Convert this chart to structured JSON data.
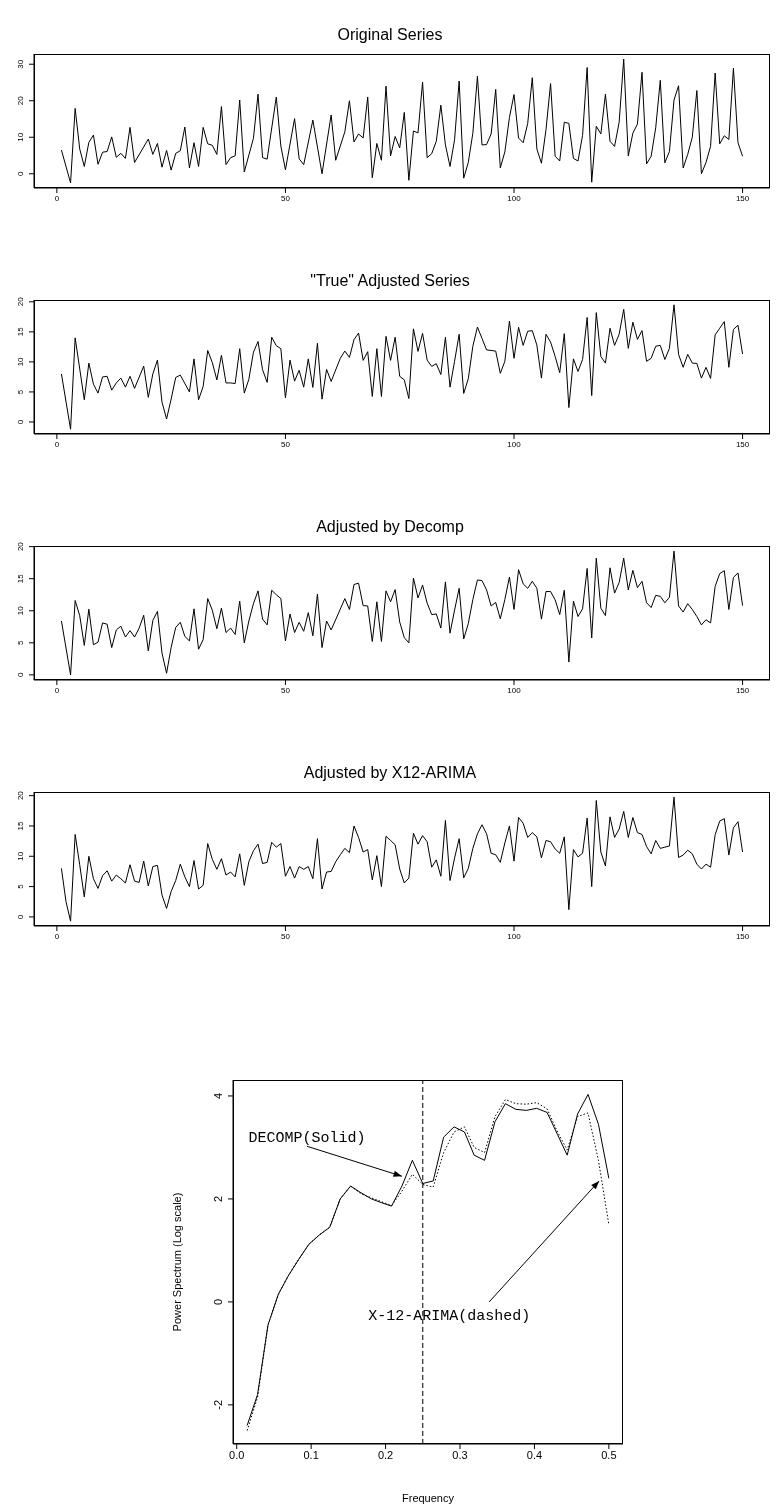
{
  "chart_data": [
    {
      "type": "line",
      "title": "Original Series",
      "color": "#000000",
      "marker": "none",
      "xlim": [
        -5,
        156
      ],
      "xticks": [
        0,
        50,
        100,
        150
      ],
      "ylim": [
        -3.9,
        32.8
      ],
      "yticks": [
        0,
        10,
        20,
        30
      ],
      "x": [
        1,
        3,
        4,
        5,
        6,
        7,
        8,
        9,
        10,
        11,
        12,
        13,
        14,
        15,
        16,
        17,
        20,
        21,
        22,
        23,
        24,
        25,
        26,
        27,
        28,
        29,
        30,
        31,
        32,
        33,
        34,
        35,
        36,
        37,
        38,
        39,
        40,
        41,
        43,
        44,
        45,
        46,
        48,
        49,
        50,
        52,
        53,
        54,
        56,
        58,
        60,
        61,
        63,
        64,
        65,
        66,
        67,
        68,
        69,
        70,
        71,
        72,
        73,
        74,
        75,
        76,
        77,
        78,
        79,
        80,
        81,
        82,
        83,
        84,
        85,
        86,
        87,
        88,
        89,
        90,
        91,
        92,
        93,
        94,
        95,
        96,
        97,
        98,
        99,
        100,
        101,
        102,
        103,
        104,
        105,
        106,
        107,
        108,
        109,
        110,
        111,
        112,
        113,
        114,
        115,
        116,
        117,
        118,
        119,
        120,
        121,
        122,
        123,
        124,
        125,
        126,
        127,
        128,
        129,
        130,
        131,
        132,
        133,
        134,
        135,
        136,
        137,
        138,
        139,
        140,
        141,
        142,
        143,
        144,
        145,
        146,
        147,
        148,
        149,
        150
      ],
      "values": [
        6.5,
        -2.5,
        17.9,
        6.8,
        2.0,
        8.6,
        10.6,
        2.6,
        5.9,
        6.1,
        10.1,
        4.5,
        5.6,
        4.2,
        12.7,
        3.1,
        9.5,
        5.3,
        8.3,
        1.8,
        6.4,
        1.0,
        5.6,
        6.3,
        12.8,
        1.6,
        8.5,
        2.0,
        12.7,
        8.2,
        7.8,
        5.3,
        18.4,
        2.5,
        4.4,
        4.9,
        20.2,
        0.5,
        9.7,
        21.8,
        4.4,
        4.0,
        21.0,
        7.6,
        1.1,
        15.1,
        4.1,
        2.5,
        14.7,
        0,
        16.1,
        3.7,
        11.5,
        20,
        8.7,
        10.9,
        9.8,
        21,
        -1.1,
        8.3,
        3.7,
        24,
        4.9,
        10.2,
        7.1,
        16.8,
        -1.8,
        11.7,
        11.2,
        25.1,
        4.4,
        5.5,
        8.9,
        18.8,
        7.9,
        2.0,
        9.3,
        25.4,
        -1.2,
        3.1,
        11.1,
        26.7,
        7.9,
        8.0,
        10.9,
        23.1,
        1.6,
        6,
        15.4,
        21.7,
        9.8,
        8.5,
        13.8,
        26.3,
        6.8,
        2.9,
        12.1,
        24.7,
        4.8,
        3.5,
        14.1,
        13.8,
        4.2,
        3.5,
        10.5,
        29.1,
        -2.3,
        13,
        10.9,
        21.8,
        8.9,
        7.5,
        14.1,
        31.4,
        4.9,
        11.1,
        13.6,
        27.8,
        2.7,
        4.8,
        12.6,
        25.6,
        3,
        6.1,
        20.2,
        24.1,
        1.6,
        5.3,
        10,
        22.8,
        0,
        3.1,
        7.5,
        27.6,
        8.2,
        10.4,
        9.4,
        28.9,
        8.5,
        4.8
      ]
    },
    {
      "type": "line",
      "title": "\"True\" Adjusted Series",
      "color": "#000000",
      "marker": "none",
      "xlim": [
        -5,
        156
      ],
      "xticks": [
        0,
        50,
        100,
        150
      ],
      "ylim": [
        -2,
        20.3
      ],
      "yticks": [
        0,
        5,
        10,
        15,
        20
      ],
      "x": [
        1,
        3,
        4,
        6,
        7,
        8,
        9,
        10,
        11,
        12,
        13,
        14,
        15,
        16,
        17,
        19,
        20,
        21,
        22,
        23,
        24,
        25,
        26,
        27,
        29,
        30,
        31,
        32,
        33,
        34,
        35,
        36,
        37,
        38,
        39,
        40,
        41,
        42,
        43,
        44,
        45,
        46,
        47,
        48,
        49,
        50,
        51,
        52,
        53,
        54,
        55,
        56,
        57,
        58,
        59,
        60,
        62,
        63,
        64,
        65,
        66,
        67,
        68,
        69,
        70,
        71,
        72,
        73,
        74,
        75,
        76,
        77,
        78,
        79,
        80,
        81,
        82,
        83,
        84,
        85,
        86,
        87,
        88,
        89,
        90,
        91,
        92,
        93,
        94,
        96,
        97,
        98,
        99,
        100,
        101,
        102,
        103,
        104,
        105,
        106,
        107,
        108,
        109,
        110,
        111,
        112,
        113,
        114,
        115,
        116,
        117,
        118,
        119,
        120,
        121,
        122,
        123,
        124,
        125,
        126,
        127,
        128,
        129,
        130,
        131,
        132,
        133,
        134,
        135,
        136,
        137,
        138,
        139,
        140,
        141,
        142,
        143,
        144,
        145,
        146,
        147,
        148,
        149,
        150
      ],
      "values": [
        8.0,
        -1.2,
        14.0,
        3.7,
        9.8,
        6.3,
        4.8,
        7.5,
        7.6,
        5.3,
        6.5,
        7.3,
        5.8,
        7.6,
        5.6,
        9.3,
        4.1,
        8.0,
        10.3,
        3.3,
        0.5,
        3.8,
        7.4,
        7.8,
        5.0,
        10.5,
        3.7,
        5.9,
        11.9,
        9.9,
        7.0,
        11.1,
        6.5,
        6.5,
        6.4,
        12.2,
        4.8,
        7.1,
        11.6,
        13.4,
        8.7,
        6.6,
        14.1,
        12.7,
        12.2,
        4.0,
        10.3,
        6.8,
        8.6,
        5.8,
        10.5,
        5.75,
        13.1,
        3.8,
        8.75,
        6.75,
        10.6,
        11.8,
        10.75,
        13.7,
        14.8,
        10.25,
        11.7,
        4.25,
        12.2,
        4.25,
        14.25,
        10.25,
        14.1,
        7.6,
        7.0,
        3.9,
        15.5,
        11.75,
        14.75,
        10.3,
        9.25,
        9.7,
        7.9,
        14.1,
        5.8,
        10.1,
        14.6,
        4.75,
        7.2,
        12.6,
        15.8,
        13.9,
        12.0,
        11.8,
        8.1,
        10.1,
        16.8,
        10.6,
        15.75,
        12.75,
        15.1,
        15.2,
        12.8,
        7.3,
        14.6,
        13.3,
        10.9,
        8.2,
        14.7,
        2.4,
        10.5,
        8.4,
        10.4,
        17.4,
        4.4,
        18.2,
        10.9,
        9.8,
        15.6,
        12.75,
        14.6,
        18.75,
        12.25,
        16.6,
        13.75,
        15.2,
        10.1,
        10.6,
        12.6,
        12.75,
        10.4,
        12.25,
        19.5,
        11.25,
        9.1,
        11.25,
        9.8,
        9.75,
        7.3,
        9.1,
        7.25,
        14.5,
        15.6,
        16.7,
        9.1,
        15.4,
        16.1,
        11.3
      ]
    },
    {
      "type": "line",
      "title": "Adjusted by Decomp",
      "color": "#000000",
      "marker": "none",
      "xlim": [
        -5,
        156
      ],
      "xticks": [
        0,
        50,
        100,
        150
      ],
      "ylim": [
        -0.8,
        20.1
      ],
      "yticks": [
        0,
        5,
        10,
        15,
        20
      ],
      "x": [
        1,
        3,
        4,
        5,
        6,
        7,
        8,
        9,
        10,
        11,
        12,
        13,
        14,
        15,
        16,
        17,
        18,
        19,
        20,
        21,
        22,
        23,
        24,
        25,
        26,
        27,
        28,
        29,
        30,
        31,
        32,
        33,
        34,
        35,
        36,
        37,
        38,
        39,
        40,
        41,
        42,
        43,
        44,
        45,
        46,
        47,
        48,
        49,
        50,
        51,
        52,
        53,
        54,
        55,
        56,
        57,
        58,
        59,
        60,
        62,
        63,
        64,
        65,
        66,
        67,
        68,
        69,
        70,
        71,
        72,
        73,
        74,
        75,
        76,
        77,
        78,
        79,
        80,
        81,
        82,
        83,
        84,
        85,
        86,
        87,
        88,
        89,
        90,
        91,
        92,
        93,
        94,
        95,
        96,
        97,
        98,
        99,
        100,
        101,
        102,
        103,
        104,
        105,
        106,
        107,
        108,
        109,
        110,
        111,
        112,
        113,
        114,
        115,
        116,
        117,
        118,
        119,
        120,
        121,
        122,
        123,
        124,
        125,
        126,
        127,
        128,
        129,
        130,
        131,
        132,
        133,
        134,
        135,
        136,
        137,
        138,
        139,
        140,
        141,
        142,
        143,
        144,
        145,
        146,
        147,
        148,
        149,
        150
      ],
      "values": [
        8.4,
        0,
        11.6,
        9.25,
        4.6,
        10.25,
        4.7,
        5.1,
        8.1,
        7.9,
        4.25,
        7.0,
        7.6,
        5.9,
        6.9,
        5.9,
        7.3,
        9.3,
        3.75,
        8.5,
        9.9,
        3.4,
        0.25,
        4.3,
        7.4,
        8.2,
        6.0,
        5.3,
        10.3,
        4.0,
        5.5,
        11.9,
        10.1,
        7.2,
        10.4,
        6.6,
        7.3,
        6.3,
        11.5,
        5.0,
        8.4,
        11.1,
        13.1,
        8.7,
        7.8,
        13.2,
        12.5,
        11.9,
        5.3,
        9.5,
        6.6,
        8.2,
        6.8,
        9.7,
        6.1,
        12.6,
        4.25,
        8.4,
        7.0,
        10.25,
        11.9,
        10.2,
        14.1,
        14.3,
        10.8,
        10.75,
        5.2,
        11.4,
        5.2,
        13.1,
        11.4,
        13.3,
        8.25,
        5.8,
        5.0,
        15.1,
        12.0,
        14.0,
        11.2,
        9.4,
        9.5,
        7.3,
        14.5,
        6.5,
        10.1,
        13.5,
        5.6,
        8.0,
        11.75,
        14.8,
        14.7,
        13.25,
        10.75,
        11.3,
        8.75,
        11.75,
        15.25,
        10.2,
        16.4,
        14.2,
        13.5,
        14.6,
        13.5,
        8.7,
        13.0,
        13.0,
        11.7,
        9.4,
        13.2,
        2.0,
        11.5,
        9.1,
        10.3,
        16.6,
        5.75,
        18.2,
        10.4,
        9.25,
        16.7,
        12.75,
        14.4,
        18.2,
        13.25,
        16.3,
        13.6,
        14.6,
        11.25,
        10.5,
        12.4,
        12.25,
        11.25,
        12.1,
        19.3,
        10.75,
        9.8,
        11.1,
        10.2,
        9.1,
        7.8,
        8.6,
        8.1,
        13.8,
        15.8,
        16.25,
        10.2,
        15.2,
        15.9,
        10.8
      ]
    },
    {
      "type": "line",
      "title": "Adjusted by X12-ARIMA",
      "color": "#000000",
      "marker": "none",
      "xlim": [
        -5,
        156
      ],
      "xticks": [
        0,
        50,
        100,
        150
      ],
      "ylim": [
        -1.5,
        20.6
      ],
      "yticks": [
        0,
        5,
        10,
        15,
        20
      ],
      "x": [
        1,
        2,
        3,
        4,
        5,
        6,
        7,
        8,
        9,
        10,
        11,
        12,
        13,
        14,
        15,
        16,
        17,
        18,
        19,
        20,
        21,
        22,
        23,
        24,
        25,
        26,
        27,
        28,
        29,
        30,
        31,
        32,
        33,
        34,
        35,
        36,
        37,
        38,
        39,
        40,
        41,
        42,
        43,
        44,
        45,
        46,
        47,
        48,
        49,
        50,
        51,
        52,
        53,
        54,
        55,
        56,
        57,
        58,
        59,
        60,
        61,
        62,
        63,
        64,
        65,
        66,
        67,
        68,
        69,
        70,
        71,
        72,
        73,
        74,
        75,
        76,
        77,
        78,
        79,
        80,
        81,
        82,
        83,
        84,
        85,
        86,
        87,
        88,
        89,
        90,
        91,
        92,
        93,
        94,
        95,
        96,
        97,
        98,
        99,
        100,
        101,
        102,
        103,
        104,
        105,
        106,
        107,
        108,
        109,
        110,
        111,
        112,
        113,
        114,
        115,
        116,
        117,
        118,
        119,
        120,
        121,
        122,
        123,
        124,
        125,
        126,
        127,
        128,
        129,
        130,
        131,
        132,
        133,
        134,
        135,
        136,
        137,
        138,
        139,
        140,
        141,
        142,
        143,
        144,
        145,
        146,
        147,
        148,
        149,
        150
      ],
      "values": [
        8.0,
        2.5,
        -0.7,
        13.6,
        8.6,
        3.3,
        10.0,
        6.3,
        4.7,
        6.8,
        7.6,
        5.9,
        6.9,
        6.3,
        5.6,
        8.6,
        5.9,
        5.7,
        9.2,
        5.1,
        8.3,
        8.5,
        3.6,
        1.4,
        4.2,
        6.0,
        8.7,
        6.6,
        5.0,
        9.3,
        4.6,
        5.2,
        12.1,
        9.5,
        7.85,
        9.6,
        6.9,
        7.4,
        6.6,
        10.4,
        5.2,
        9.1,
        10.9,
        12.0,
        8.8,
        9.0,
        12.3,
        11.5,
        12.1,
        6.7,
        8.3,
        6.4,
        8.3,
        7.85,
        8.3,
        6.3,
        12.9,
        4.6,
        7.4,
        7.5,
        9.1,
        10.25,
        11.3,
        10.6,
        15.0,
        13.1,
        10.7,
        11.1,
        6.1,
        10.1,
        5.0,
        13.3,
        12.6,
        11.9,
        7.9,
        5.6,
        6.4,
        13.8,
        12.0,
        13.4,
        12.4,
        8.2,
        9.4,
        6.7,
        15.9,
        6.0,
        9.7,
        12.9,
        6.45,
        8.0,
        11.3,
        13.7,
        15.2,
        13.7,
        10.5,
        10.25,
        9.0,
        12.2,
        15.0,
        9.2,
        16.4,
        15.45,
        13.1,
        13.9,
        13.2,
        9.75,
        12.6,
        12.4,
        11.2,
        10.5,
        13.2,
        1.2,
        11.1,
        9.9,
        10.5,
        16.3,
        5.0,
        19.2,
        10.7,
        8.4,
        16.5,
        13.1,
        14.5,
        17.4,
        13.1,
        16.4,
        13.9,
        13.6,
        11.6,
        10.4,
        12.6,
        11.3,
        11.5,
        11.7,
        19.75,
        9.8,
        10.2,
        11.0,
        10.4,
        8.7,
        7.9,
        8.7,
        8.2,
        13.55,
        15.8,
        16.2,
        10.2,
        14.7,
        15.7,
        10.7
      ]
    },
    {
      "type": "line",
      "xlabel": "Frequency",
      "ylabel": "Power Spectrum (Log scale)",
      "marker": "none",
      "xlim": [
        -0.005,
        0.519
      ],
      "xticks": [
        {
          "value": 0,
          "label": "0.0"
        },
        0.1,
        0.2,
        0.3,
        0.4,
        0.5
      ],
      "ylim": [
        -2.76,
        4.31
      ],
      "yticks": [
        -2,
        0,
        2,
        4
      ],
      "x": [
        0.014,
        0.028,
        0.042,
        0.056,
        0.069,
        0.083,
        0.097,
        0.111,
        0.125,
        0.139,
        0.153,
        0.167,
        0.181,
        0.194,
        0.208,
        0.222,
        0.236,
        0.25,
        0.264,
        0.278,
        0.292,
        0.306,
        0.319,
        0.333,
        0.347,
        0.361,
        0.375,
        0.389,
        0.403,
        0.417,
        0.431,
        0.444,
        0.458,
        0.472,
        0.486,
        0.5
      ],
      "series": [
        {
          "color": "#000000",
          "line_style": "solid",
          "values": [
            -2.4,
            -1.8,
            -0.45,
            0.15,
            0.5,
            0.82,
            1.12,
            1.3,
            1.45,
            2.0,
            2.25,
            2.12,
            2.0,
            1.93,
            1.86,
            2.25,
            2.75,
            2.3,
            2.35,
            3.2,
            3.4,
            3.3,
            2.85,
            2.75,
            3.5,
            3.85,
            3.74,
            3.72,
            3.76,
            3.68,
            3.25,
            2.85,
            3.65,
            4.03,
            3.45,
            2.4
          ]
        },
        {
          "color": "#000000",
          "line_style": "dotted",
          "values": [
            -2.5,
            -1.85,
            -0.45,
            0.15,
            0.5,
            0.82,
            1.12,
            1.3,
            1.45,
            2.0,
            2.25,
            2.1,
            2.02,
            1.95,
            1.87,
            2.15,
            2.48,
            2.28,
            2.23,
            2.9,
            3.3,
            3.4,
            3.0,
            2.9,
            3.6,
            3.93,
            3.85,
            3.84,
            3.87,
            3.75,
            3.3,
            2.95,
            3.6,
            3.67,
            2.75,
            1.5
          ]
        }
      ],
      "ref_lines": [
        {
          "axis": "x",
          "value": 0.25,
          "line_style": "dashed",
          "color": "#000000"
        }
      ],
      "annotations": [
        {
          "text": "DECOMP(Solid)",
          "x": 0.222,
          "y": 2.44
        },
        {
          "text": "X-12-ARIMA(dashed)",
          "x": 0.487,
          "y": 2.35
        }
      ]
    }
  ]
}
